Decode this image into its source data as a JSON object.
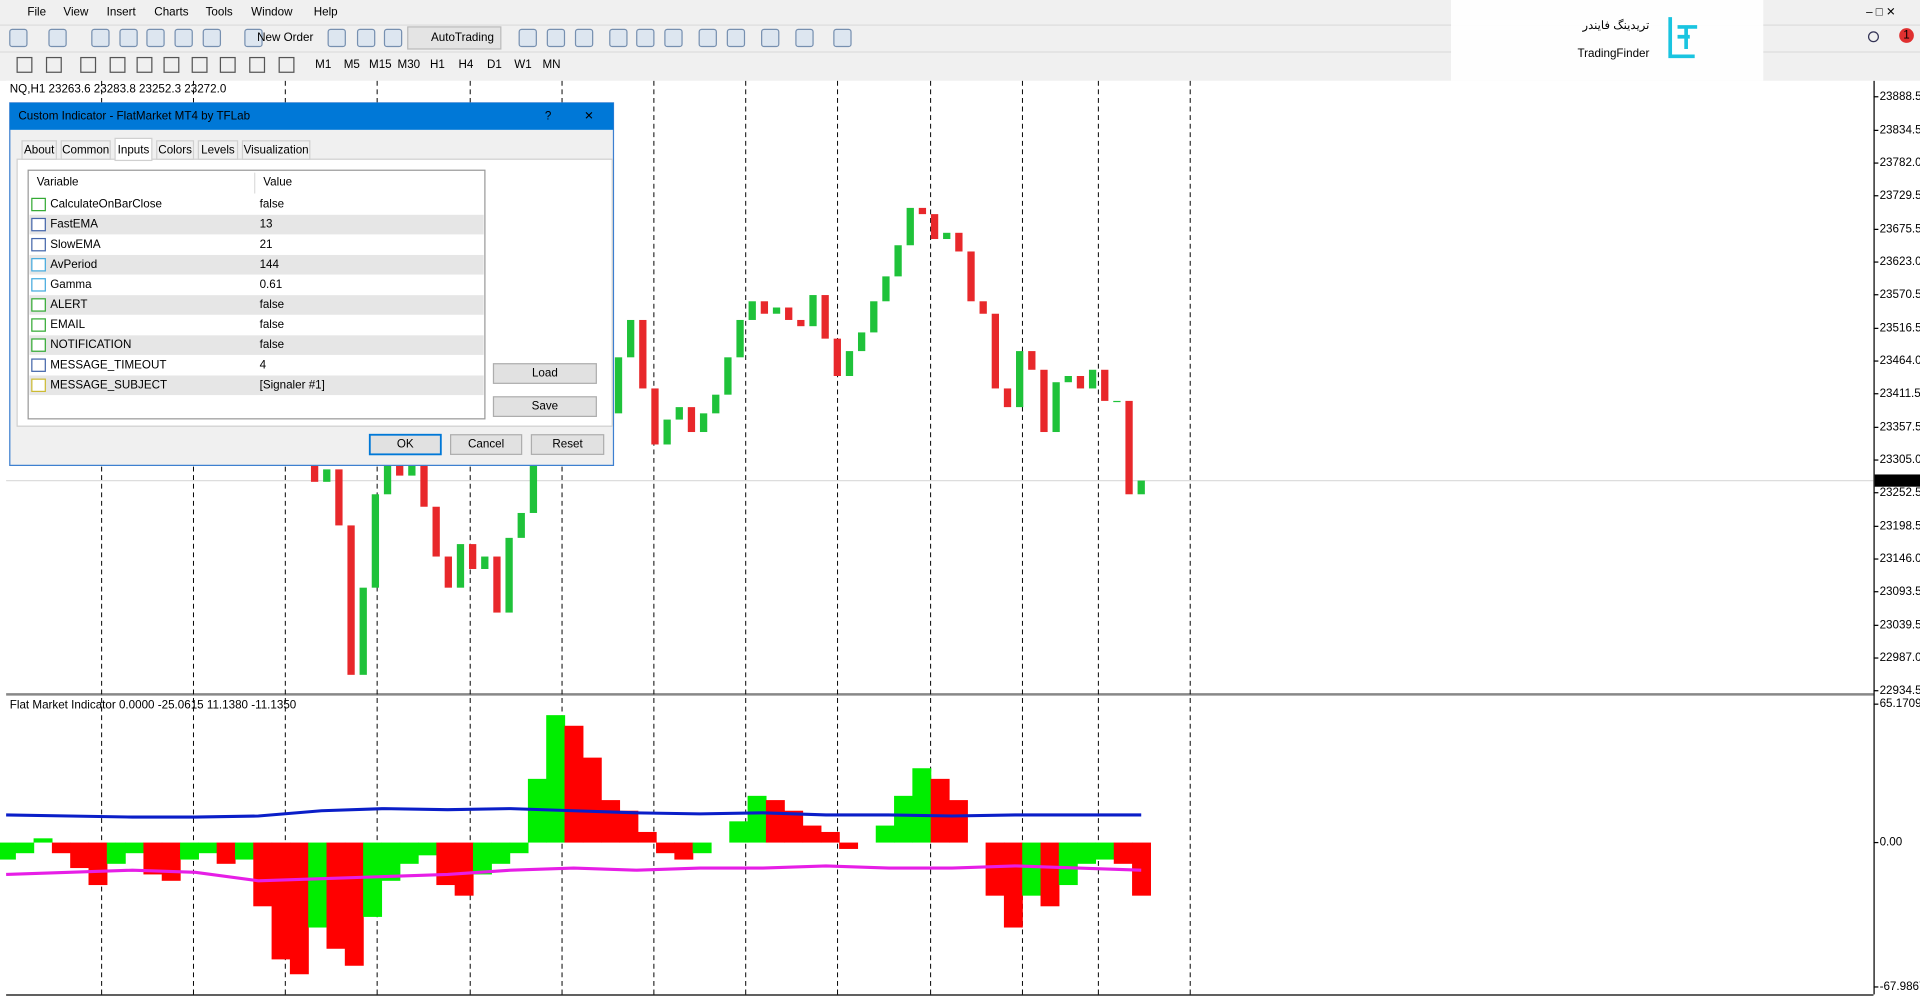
{
  "menu": [
    "File",
    "View",
    "Insert",
    "Charts",
    "Tools",
    "Window",
    "Help"
  ],
  "toolbar": {
    "new_order": "New Order",
    "auto_trading": "AutoTrading",
    "timeframes": [
      "M1",
      "M5",
      "M15",
      "M30",
      "H1",
      "H4",
      "D1",
      "W1",
      "MN"
    ]
  },
  "logo": {
    "persian": "تریدینگ فایندر",
    "latin": "TradingFinder"
  },
  "notifications": 1,
  "chart_data": [
    {
      "type": "candlestick",
      "title": "NQ,H1  23263.6 23283.8 23252.3 23272.0",
      "up_color": "#1fc23a",
      "down_color": "#e8282b",
      "values": [
        23300,
        23270,
        23290,
        23200,
        22960,
        23100,
        23250,
        23320,
        23280,
        23300,
        23230,
        23150,
        23100,
        23170,
        23130,
        23150,
        23060,
        23180,
        23220,
        23330,
        23420,
        23480,
        23450,
        23400,
        23440,
        23380,
        23470,
        23530,
        23420,
        23330,
        23370,
        23390,
        23350,
        23380,
        23410,
        23470,
        23530,
        23560,
        23540,
        23550,
        23530,
        23520,
        23570,
        23500,
        23440,
        23480,
        23510,
        23560,
        23600,
        23650,
        23710,
        23700,
        23660,
        23670,
        23640,
        23560,
        23540,
        23420,
        23390,
        23480,
        23450,
        23350,
        23430,
        23440,
        23420,
        23450,
        23400,
        23400,
        23250,
        23272
      ],
      "ylim": [
        22928.6,
        23914.1
      ],
      "yticks": [
        23888.5,
        23834.5,
        {
          "value": 23782,
          "label": "23782.0"
        },
        23729.5,
        23675.5,
        {
          "value": 23623,
          "label": "23623.0"
        },
        23570.5,
        23516.5,
        {
          "value": 23464,
          "label": "23464.0"
        },
        23411.5,
        23357.5,
        {
          "value": 23305,
          "label": "23305.0"
        },
        23252.5,
        23198.5,
        {
          "value": 23146,
          "label": "23146.0"
        },
        23093.5,
        23039.5,
        {
          "value": 22987,
          "label": "22987.0"
        },
        22934.5
      ],
      "current_price": {
        "value": 23272,
        "label": "23272.0"
      }
    },
    {
      "type": "histogram",
      "title": "Flat Market Indicator 0.0000 -25.0615 11.1380 -11.1350",
      "up_color": "#00ee00",
      "down_color": "#ff0000",
      "values": [
        -8,
        -5,
        2,
        -5,
        -12,
        -20,
        -10,
        -5,
        -15,
        -18,
        -8,
        -5,
        -10,
        -8,
        -30,
        -55,
        -62,
        -40,
        -50,
        -58,
        -35,
        -18,
        -10,
        -6,
        -20,
        -25,
        -15,
        -10,
        -5,
        30,
        60,
        55,
        40,
        20,
        15,
        5,
        -5,
        -8,
        -5,
        0,
        10,
        22,
        20,
        15,
        8,
        5,
        -3,
        0,
        8,
        22,
        35,
        30,
        20,
        0,
        -25,
        -40,
        -25,
        -30,
        -20,
        -10,
        -8,
        -10,
        -25
      ],
      "series": [
        {
          "name": "Upper",
          "color": "#0a1ec8",
          "values": [
            13,
            12.5,
            12,
            12,
            12.5,
            15,
            16,
            15.5,
            16,
            15,
            14,
            13.5,
            14,
            13,
            13,
            12.5,
            13,
            13,
            13
          ]
        },
        {
          "name": "Lower",
          "color": "#e61ee6",
          "values": [
            -15,
            -14,
            -13,
            -14,
            -18,
            -17,
            -16,
            -15,
            -13,
            -12,
            -13,
            -12,
            -12,
            -11,
            -12,
            -12,
            -11,
            -12,
            -13
          ]
        }
      ],
      "ylim": [
        -71.5,
        69.2
      ],
      "yticks": [
        65.1709,
        {
          "value": 0,
          "label": "0.00"
        },
        -67.9867
      ]
    }
  ],
  "dialog": {
    "title": "Custom Indicator - FlatMarket MT4 by TFLab",
    "help": "?",
    "tabs": [
      "About",
      "Common",
      "Inputs",
      "Colors",
      "Levels",
      "Visualization"
    ],
    "columns": [
      "Variable",
      "Value"
    ],
    "rows": [
      [
        "CalculateOnBarClose",
        "false"
      ],
      [
        "FastEMA",
        "13"
      ],
      [
        "SlowEMA",
        "21"
      ],
      [
        "AvPeriod",
        "144"
      ],
      [
        "Gamma",
        "0.61"
      ],
      [
        "ALERT",
        "false"
      ],
      [
        "EMAIL",
        "false"
      ],
      [
        "NOTIFICATION",
        "false"
      ],
      [
        "MESSAGE_TIMEOUT",
        "4"
      ],
      [
        "MESSAGE_SUBJECT",
        "[Signaler #1]"
      ]
    ],
    "buttons": {
      "load": "Load",
      "save": "Save",
      "ok": "OK",
      "cancel": "Cancel",
      "reset": "Reset"
    }
  }
}
